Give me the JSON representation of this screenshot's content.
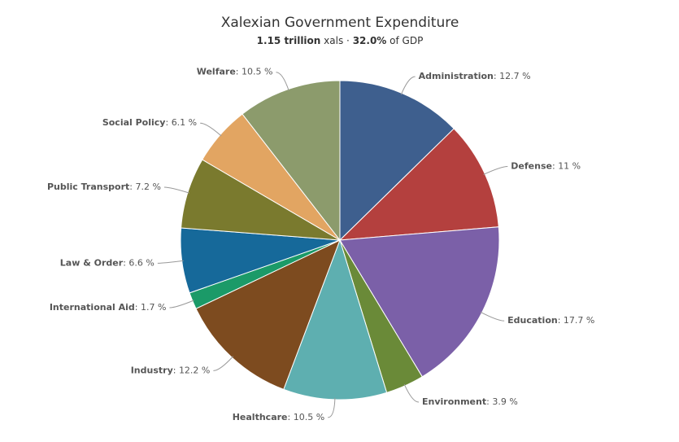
{
  "chart_data": {
    "type": "pie",
    "title": "Xalexian Government Expenditure",
    "subtitle": {
      "amount": "1.15 trillion",
      "unit": "xals",
      "separator": "·",
      "share": "32.0%",
      "share_text": "of GDP"
    },
    "label_separator": ": ",
    "categories": [
      "Administration",
      "Defense",
      "Education",
      "Environment",
      "Healthcare",
      "Industry",
      "International Aid",
      "Law & Order",
      "Public Transport",
      "Social Policy",
      "Welfare"
    ],
    "values": [
      12.7,
      11,
      17.7,
      3.9,
      10.5,
      12.2,
      1.7,
      6.6,
      7.2,
      6.1,
      10.5
    ],
    "value_labels": [
      "12.7 %",
      "11 %",
      "17.7 %",
      "3.9 %",
      "10.5 %",
      "12.2 %",
      "1.7 %",
      "6.6 %",
      "7.2 %",
      "6.1 %",
      "10.5 %"
    ],
    "colors": [
      "#3e5f8e",
      "#b4403e",
      "#7b60a8",
      "#6a8a38",
      "#5eafb0",
      "#7d4b1f",
      "#1b9a68",
      "#16699a",
      "#7a7a2e",
      "#e2a562",
      "#8c9b6c"
    ]
  }
}
